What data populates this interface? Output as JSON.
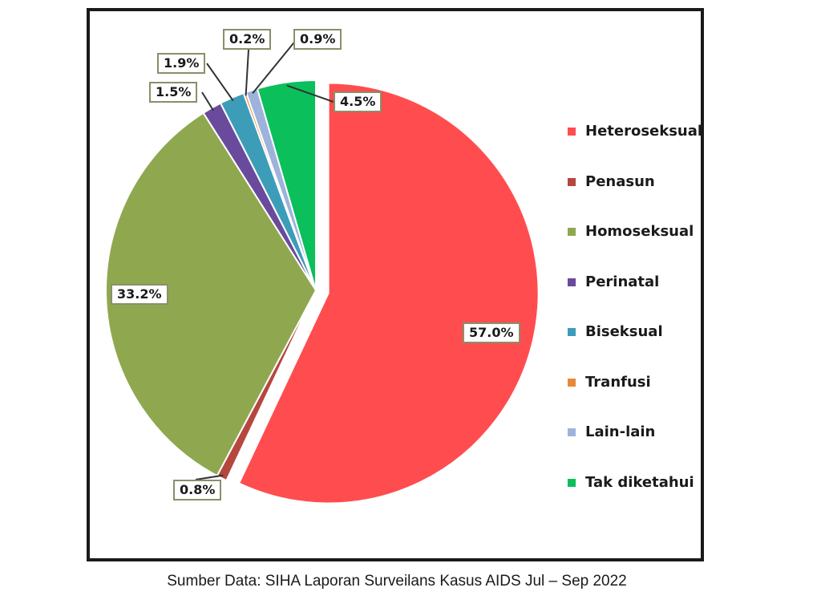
{
  "caption": "Sumber Data: SIHA Laporan Surveilans Kasus AIDS Jul – Sep 2022",
  "chart_data": {
    "type": "pie",
    "title": "",
    "legend_position": "right",
    "slices": [
      {
        "name": "Heteroseksual",
        "value": 57.0,
        "label": "57.0%",
        "color": "#ff4d4f"
      },
      {
        "name": "Penasun",
        "value": 0.8,
        "label": "0.8%",
        "color": "#b5473f"
      },
      {
        "name": "Homoseksual",
        "value": 33.2,
        "label": "33.2%",
        "color": "#8fa84f"
      },
      {
        "name": "Perinatal",
        "value": 1.5,
        "label": "1.5%",
        "color": "#6a4a9c"
      },
      {
        "name": "Biseksual",
        "value": 1.9,
        "label": "1.9%",
        "color": "#3d9db8"
      },
      {
        "name": "Tranfusi",
        "value": 0.2,
        "label": "0.2%",
        "color": "#e8893a"
      },
      {
        "name": "Lain-lain",
        "value": 0.9,
        "label": "0.9%",
        "color": "#9db3dc"
      },
      {
        "name": "Tak diketahui",
        "value": 4.5,
        "label": "4.5%",
        "color": "#0bbf5a"
      }
    ]
  }
}
